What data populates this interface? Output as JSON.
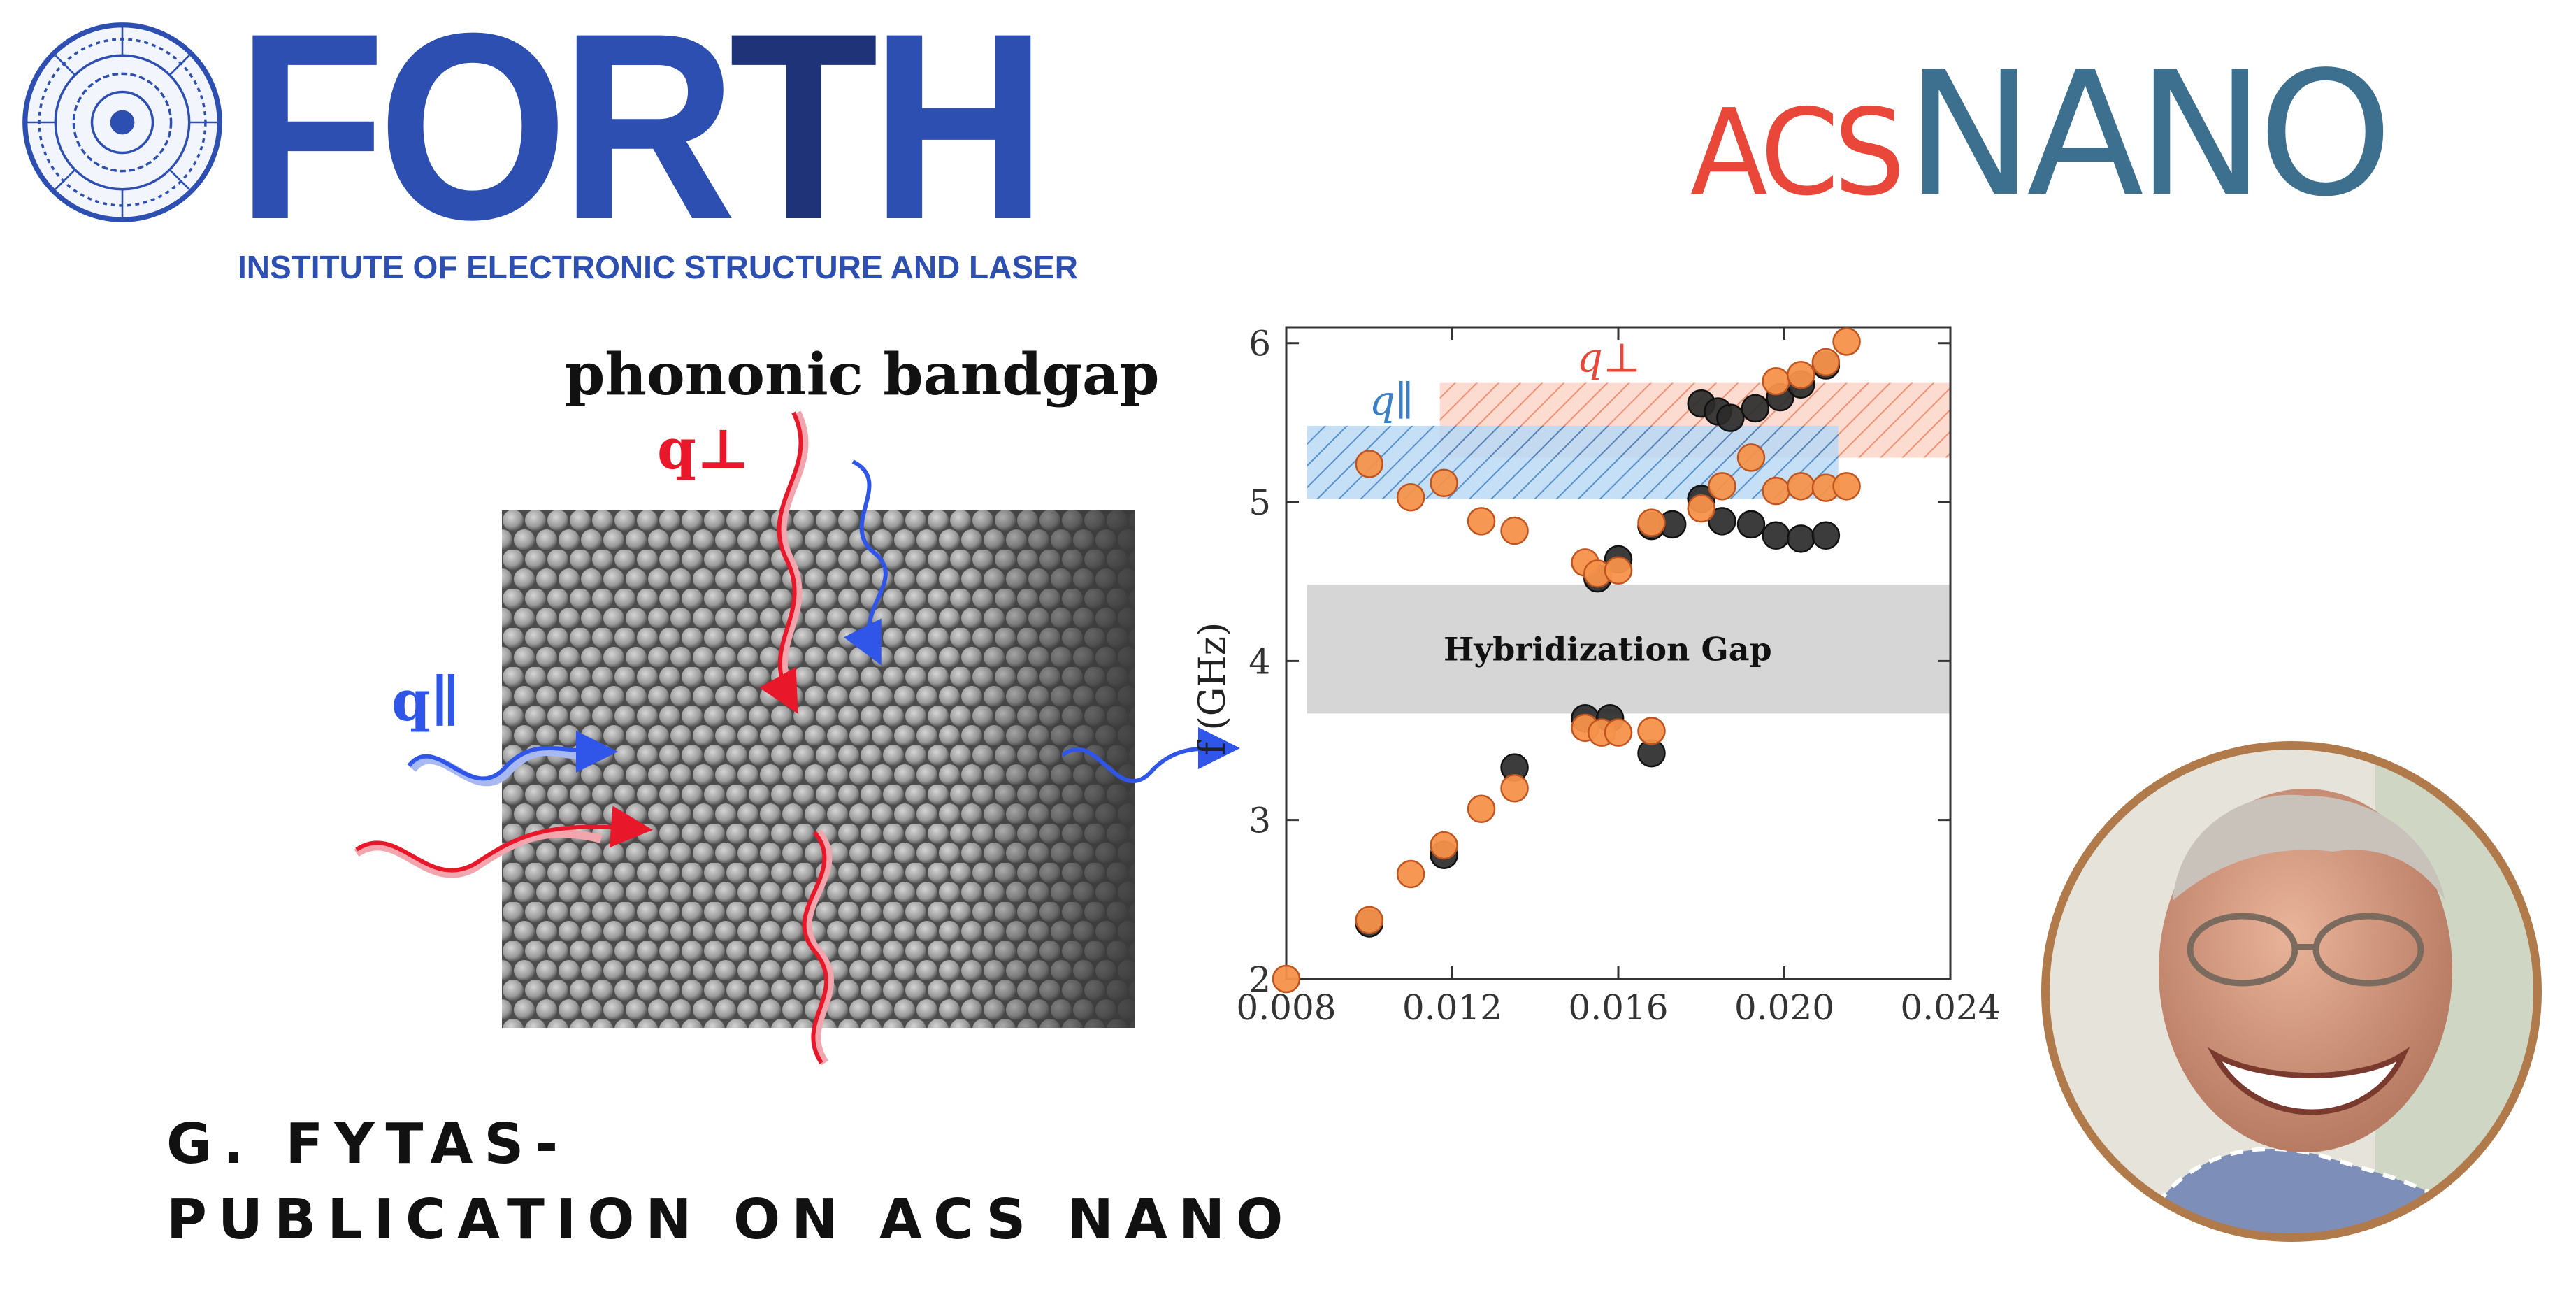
{
  "header": {
    "forth_logo": {
      "word": "FORTH",
      "subtitle": "INSTITUTE OF ELECTRONIC STRUCTURE AND LASER",
      "colors": {
        "primary": "#2d4fb1",
        "dark": "#1f3378"
      },
      "seal_icon": "phaistos-disc-seal-icon"
    },
    "acs_logo": {
      "prefix": "ACS",
      "name": "NANO",
      "colors": {
        "prefix": "#e8473a",
        "name": "#3d6f8f"
      }
    }
  },
  "figure": {
    "title": "phononic bandgap",
    "labels": {
      "q_perp": "q⊥",
      "q_par": "q∥"
    },
    "colors": {
      "perp": "#e8172a",
      "par": "#2f56e8"
    },
    "sem_image_icon": "colloidal-crystal-sem-image"
  },
  "chart_data": {
    "type": "scatter",
    "title": "",
    "xlabel": "",
    "ylabel": "f (GHz)",
    "xlim": [
      0.008,
      0.024
    ],
    "ylim": [
      2,
      6.1
    ],
    "xticks": [
      "0.008",
      "0.012",
      "0.016",
      "0.020",
      "0.024"
    ],
    "yticks": [
      "2",
      "3",
      "4",
      "5",
      "6"
    ],
    "grid": false,
    "bands": [
      {
        "name": "q⊥",
        "x": [
          0.0117,
          0.024
        ],
        "y": [
          5.28,
          5.75
        ],
        "color": "#f07c5a",
        "hatch": "diagonal"
      },
      {
        "name": "q∥",
        "x": [
          0.0085,
          0.0213
        ],
        "y": [
          5.02,
          5.48
        ],
        "color": "#5aa0e0",
        "hatch": "diagonal"
      },
      {
        "name": "Hybridization Gap",
        "x": [
          0.0085,
          0.024
        ],
        "y": [
          3.67,
          4.48
        ],
        "color": "#d6d6d6"
      }
    ],
    "series": [
      {
        "color": "#2b2b2b",
        "points": [
          [
            0.01,
            2.35
          ],
          [
            0.0118,
            2.78
          ],
          [
            0.0135,
            3.33
          ],
          [
            0.0152,
            3.64
          ],
          [
            0.0158,
            3.64
          ],
          [
            0.0168,
            3.42
          ],
          [
            0.0155,
            4.52
          ],
          [
            0.016,
            4.64
          ],
          [
            0.0168,
            4.85
          ],
          [
            0.0173,
            4.86
          ],
          [
            0.018,
            5.02
          ],
          [
            0.0185,
            4.88
          ],
          [
            0.0192,
            4.86
          ],
          [
            0.0198,
            4.79
          ],
          [
            0.0204,
            4.77
          ],
          [
            0.021,
            4.79
          ],
          [
            0.018,
            5.62
          ],
          [
            0.0184,
            5.57
          ],
          [
            0.0187,
            5.53
          ],
          [
            0.0193,
            5.59
          ],
          [
            0.0199,
            5.66
          ],
          [
            0.0204,
            5.74
          ],
          [
            0.021,
            5.86
          ]
        ]
      },
      {
        "color": "#f5924b",
        "points": [
          [
            0.008,
            2.0
          ],
          [
            0.01,
            2.37
          ],
          [
            0.011,
            2.66
          ],
          [
            0.0118,
            2.84
          ],
          [
            0.0127,
            3.07
          ],
          [
            0.0135,
            3.2
          ],
          [
            0.0152,
            3.58
          ],
          [
            0.0156,
            3.55
          ],
          [
            0.016,
            3.55
          ],
          [
            0.0168,
            3.56
          ],
          [
            0.0152,
            4.62
          ],
          [
            0.0155,
            4.55
          ],
          [
            0.016,
            4.57
          ],
          [
            0.0168,
            4.87
          ],
          [
            0.018,
            4.96
          ],
          [
            0.0185,
            5.1
          ],
          [
            0.0192,
            5.28
          ],
          [
            0.0198,
            5.07
          ],
          [
            0.0204,
            5.1
          ],
          [
            0.021,
            5.09
          ],
          [
            0.0215,
            5.1
          ],
          [
            0.01,
            5.24
          ],
          [
            0.011,
            5.03
          ],
          [
            0.0118,
            5.12
          ],
          [
            0.0127,
            4.88
          ],
          [
            0.0135,
            4.82
          ],
          [
            0.0198,
            5.76
          ],
          [
            0.0204,
            5.8
          ],
          [
            0.021,
            5.88
          ],
          [
            0.0215,
            6.01
          ]
        ]
      }
    ]
  },
  "caption": {
    "line1": "G. FYTAS-",
    "line2": "PUBLICATION ON ACS NANO"
  },
  "portrait": {
    "icon": "person-portrait-photo",
    "ring_color": "#b07a4a"
  }
}
